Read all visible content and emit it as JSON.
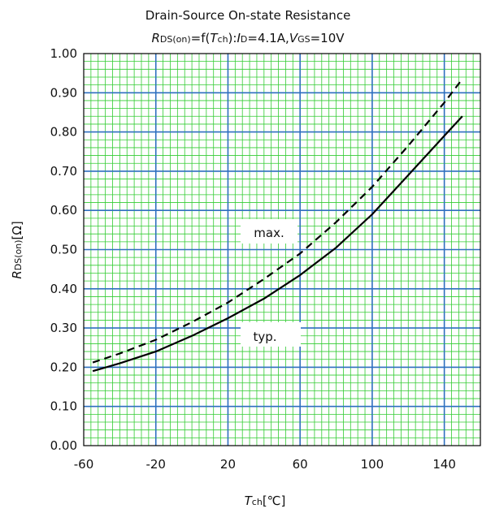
{
  "chart_data": {
    "type": "line",
    "title": "Drain-Source On-state Resistance",
    "subtitle": {
      "r_italic": "R",
      "r_sub": "DS(on)",
      "eq_f": "=f(",
      "t_italic": "T",
      "t_sub": "ch",
      "close_colon": "):",
      "i_italic": "I",
      "i_sub": "D",
      "i_val": "=4.1A,",
      "v_italic": "V",
      "v_sub": "GS",
      "v_val": "=10V"
    },
    "xlabel": {
      "italic": "T",
      "sub": "ch",
      "unit": "[℃]"
    },
    "ylabel": {
      "italic": "R",
      "sub": "DS(on)",
      "unit": "[Ω]"
    },
    "xlim": [
      -60,
      160
    ],
    "ylim": [
      0,
      1.0
    ],
    "x_ticks": [
      "-60",
      "-20",
      "20",
      "60",
      "100",
      "140"
    ],
    "y_ticks": [
      "0.00",
      "0.10",
      "0.20",
      "0.30",
      "0.40",
      "0.50",
      "0.60",
      "0.70",
      "0.80",
      "0.90",
      "1.00"
    ],
    "grid": true,
    "series": [
      {
        "name": "typ.",
        "style": "solid",
        "x": [
          -55,
          -40,
          -20,
          0,
          20,
          40,
          60,
          80,
          100,
          120,
          140,
          150
        ],
        "y": [
          0.19,
          0.21,
          0.24,
          0.28,
          0.325,
          0.375,
          0.435,
          0.505,
          0.59,
          0.69,
          0.79,
          0.84
        ]
      },
      {
        "name": "max.",
        "style": "dashed",
        "x": [
          -55,
          -40,
          -20,
          0,
          20,
          40,
          60,
          80,
          100,
          120,
          140,
          150
        ],
        "y": [
          0.212,
          0.235,
          0.27,
          0.315,
          0.365,
          0.425,
          0.49,
          0.57,
          0.66,
          0.765,
          0.875,
          0.935
        ]
      }
    ],
    "colors": {
      "major_grid": "#2e6fbf",
      "minor_grid": "#33cc33",
      "line": "#000000"
    }
  }
}
